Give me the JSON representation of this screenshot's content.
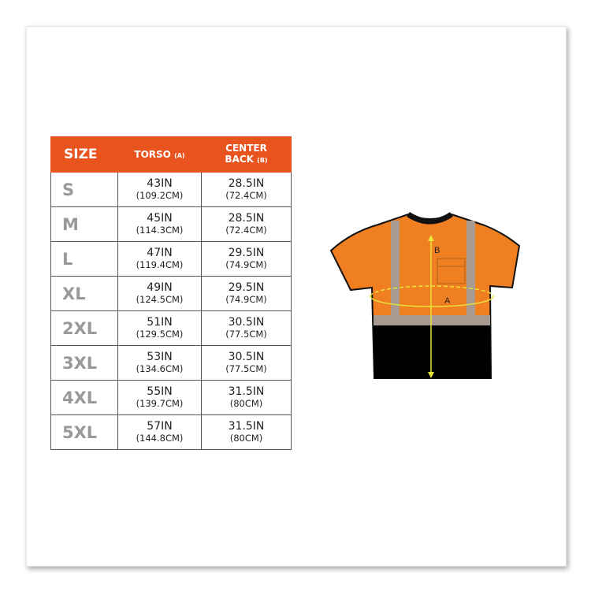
{
  "table": {
    "headers": {
      "size": "SIZE",
      "torso": "TORSO",
      "torso_tag": "(A)",
      "back_line1": "CENTER",
      "back_line2": "BACK",
      "back_tag": "(B)"
    },
    "rows": [
      {
        "size": "S",
        "torso_in": "43IN",
        "torso_cm": "(109.2CM)",
        "back_in": "28.5IN",
        "back_cm": "(72.4CM)"
      },
      {
        "size": "M",
        "torso_in": "45IN",
        "torso_cm": "(114.3CM)",
        "back_in": "28.5IN",
        "back_cm": "(72.4CM)"
      },
      {
        "size": "L",
        "torso_in": "47IN",
        "torso_cm": "(119.4CM)",
        "back_in": "29.5IN",
        "back_cm": "(74.9CM)"
      },
      {
        "size": "XL",
        "torso_in": "49IN",
        "torso_cm": "(124.5CM)",
        "back_in": "29.5IN",
        "back_cm": "(74.9CM)"
      },
      {
        "size": "2XL",
        "torso_in": "51IN",
        "torso_cm": "(129.5CM)",
        "back_in": "30.5IN",
        "back_cm": "(77.5CM)"
      },
      {
        "size": "3XL",
        "torso_in": "53IN",
        "torso_cm": "(134.6CM)",
        "back_in": "30.5IN",
        "back_cm": "(77.5CM)"
      },
      {
        "size": "4XL",
        "torso_in": "55IN",
        "torso_cm": "(139.7CM)",
        "back_in": "31.5IN",
        "back_cm": "(80CM)"
      },
      {
        "size": "5XL",
        "torso_in": "57IN",
        "torso_cm": "(144.8CM)",
        "back_in": "31.5IN",
        "back_cm": "(80CM)"
      }
    ]
  },
  "diagram": {
    "label_a": "A",
    "label_b": "B"
  },
  "colors": {
    "header": "#e9531e",
    "shirt_orange": "#f07f22",
    "shirt_black": "#000000",
    "reflective": "#a89a90",
    "measure": "#e8e43a"
  }
}
